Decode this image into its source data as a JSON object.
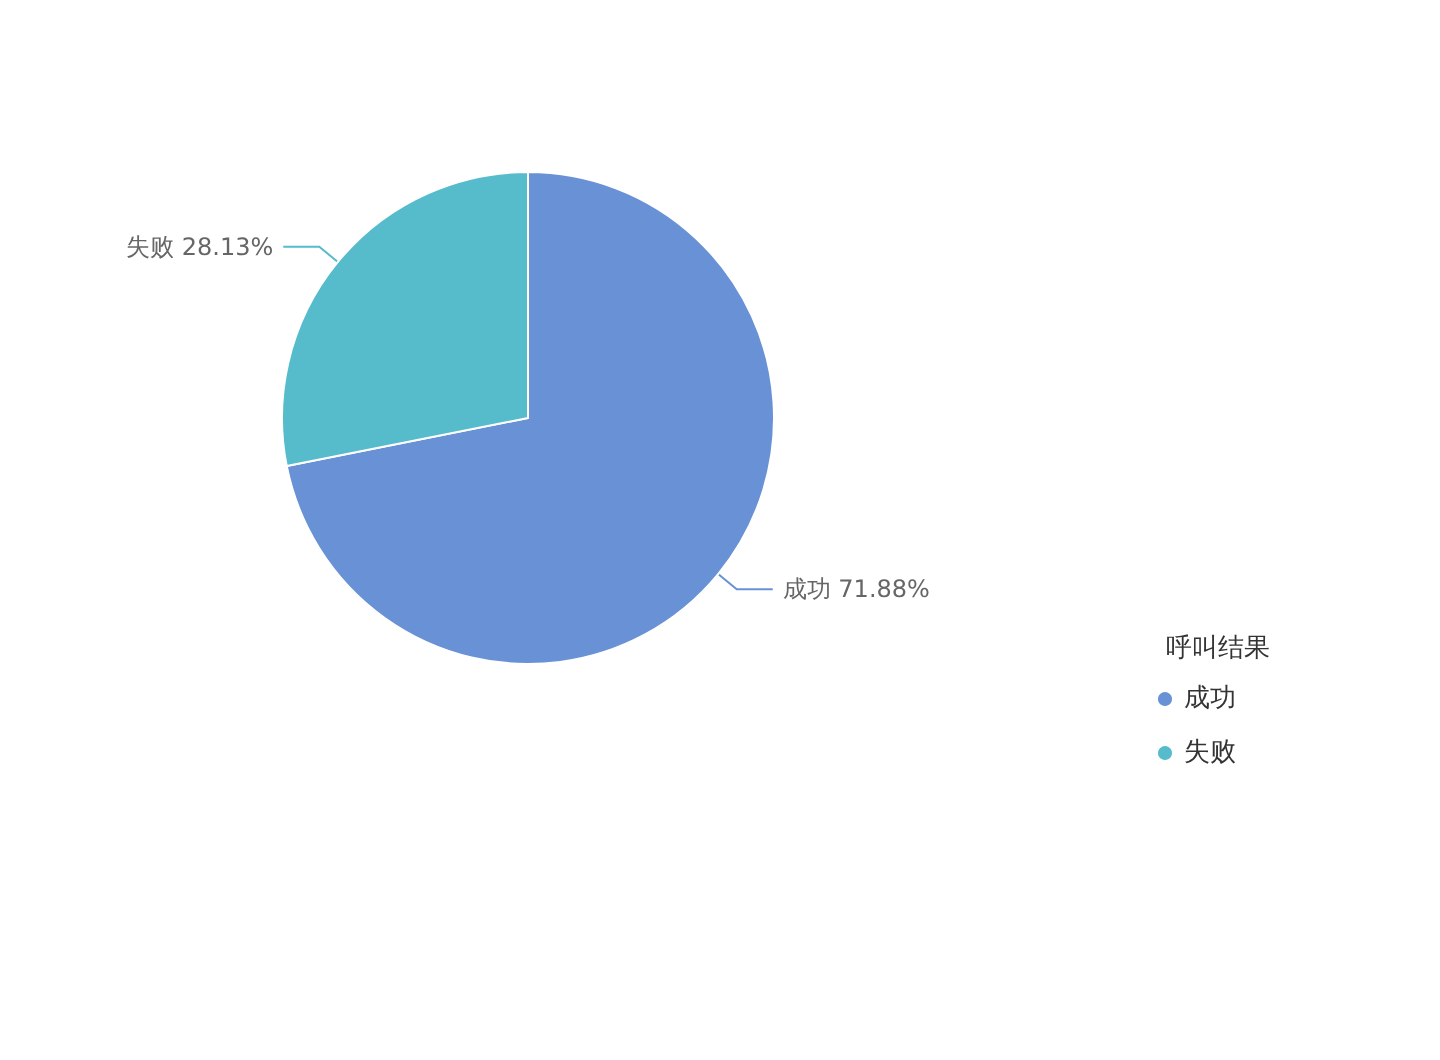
{
  "chart_data": {
    "type": "pie",
    "legend_title": "呼叫结果",
    "categories": [
      "成功",
      "失败"
    ],
    "values": [
      71.88,
      28.13
    ],
    "colors": [
      "#6891d6",
      "#56bccc"
    ],
    "value_labels": [
      "71.88%",
      "28.13%"
    ],
    "legend": "right"
  }
}
